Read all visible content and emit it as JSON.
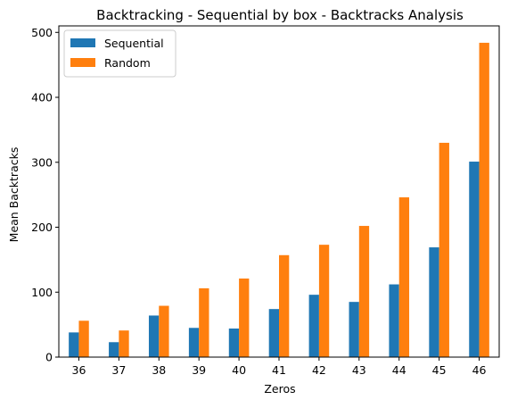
{
  "chart_data": {
    "type": "bar",
    "title": "Backtracking - Sequential by box - Backtracks Analysis",
    "xlabel": "Zeros",
    "ylabel": "Mean Backtracks",
    "categories": [
      "36",
      "37",
      "38",
      "39",
      "40",
      "41",
      "42",
      "43",
      "44",
      "45",
      "46"
    ],
    "series": [
      {
        "name": "Sequential",
        "color": "#1f77b4",
        "values": [
          38,
          23,
          64,
          45,
          44,
          74,
          96,
          85,
          112,
          169,
          301
        ]
      },
      {
        "name": "Random",
        "color": "#ff7f0e",
        "values": [
          56,
          41,
          79,
          106,
          121,
          157,
          173,
          202,
          246,
          330,
          484
        ]
      }
    ],
    "ylim": [
      0,
      510
    ],
    "yticks": [
      0,
      100,
      200,
      300,
      400,
      500
    ],
    "grid": false,
    "legend_position": "top-left"
  }
}
